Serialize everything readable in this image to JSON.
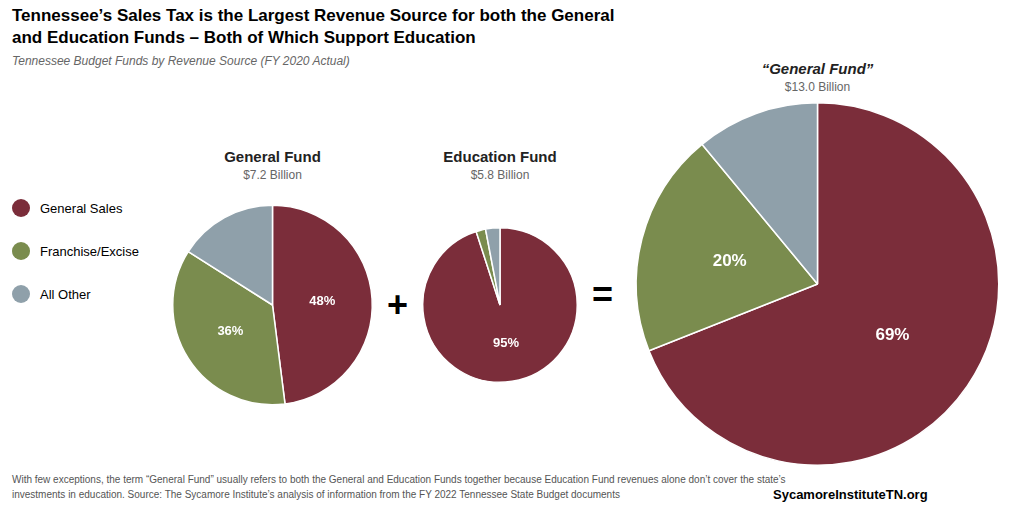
{
  "title": [
    "Tennessee’s Sales Tax is the Largest Revenue Source for both the General",
    "and Education Funds – Both of Which Support Education"
  ],
  "subtitle": "Tennessee Budget Funds by Revenue Source (FY 2020 Actual)",
  "annotations": [
    "+",
    "="
  ],
  "footnote": [
    "With few exceptions, the term “General Fund” usually refers to both the General and Education Funds together because Education Fund revenues alone don’t cover the state’s",
    "investments in education. Source: The Sycamore Institute’s analysis of information from the FY 2022 Tennessee State Budget documents"
  ],
  "credit": "SycamoreInstituteTN.org",
  "legend": "left",
  "chart_data": [
    {
      "type": "pie",
      "title": "General Fund",
      "subtitle": "$7.2 Billion",
      "categories": [
        "General Sales",
        "Franchise/Excise",
        "All Other"
      ],
      "values": [
        48,
        36,
        16
      ],
      "colors": [
        "#7b2d3a",
        "#7a8c4e",
        "#8fa0aa"
      ],
      "data_labels": true,
      "value_labels": [
        "48%",
        "36%",
        null
      ]
    },
    {
      "type": "pie",
      "title": "Education Fund",
      "subtitle": "$5.8 Billion",
      "categories": [
        "General Sales",
        "Franchise/Excise",
        "All Other"
      ],
      "values": [
        95,
        2,
        3
      ],
      "colors": [
        "#7b2d3a",
        "#7a8c4e",
        "#8fa0aa"
      ],
      "data_labels": true,
      "value_labels": [
        "95%",
        null,
        null
      ]
    },
    {
      "type": "pie",
      "title": "“General Fund”",
      "subtitle": "$13.0 Billion",
      "categories": [
        "General Sales",
        "Franchise/Excise",
        "All Other"
      ],
      "values": [
        69,
        20,
        11
      ],
      "colors": [
        "#7b2d3a",
        "#7a8c4e",
        "#8fa0aa"
      ],
      "data_labels": true,
      "value_labels": [
        "69%",
        "20%",
        null
      ]
    }
  ]
}
